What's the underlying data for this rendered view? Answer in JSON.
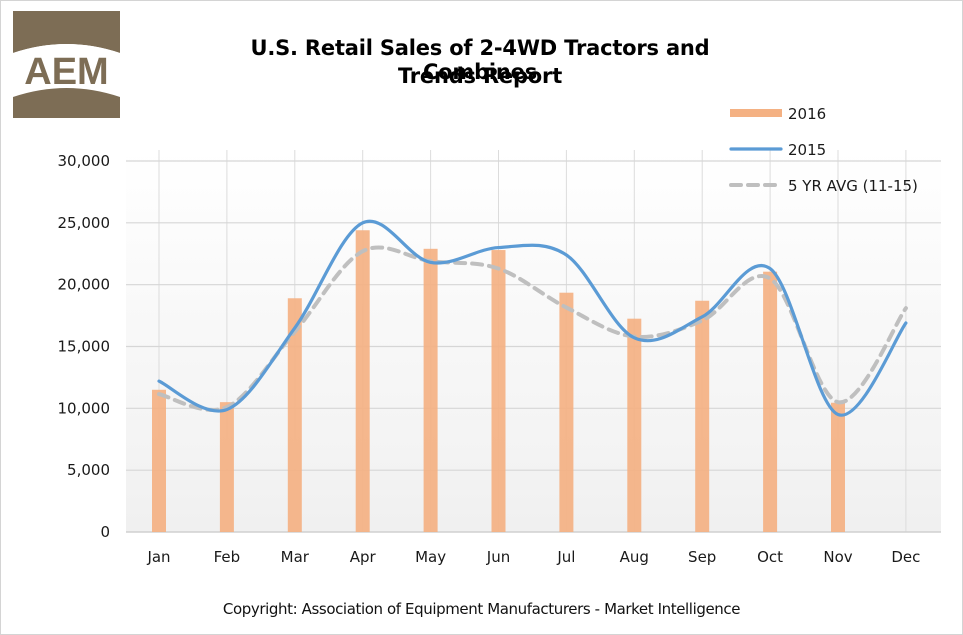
{
  "header": {
    "logo_text": "AEM",
    "logo_color": "#7d6d55",
    "title_line1": "U.S. Retail Sales of 2-4WD Tractors and Combines",
    "title_line2": "Trends Report"
  },
  "footer": {
    "copyright": "Copyright: Association of Equipment Manufacturers - Market Intelligence"
  },
  "legend": [
    {
      "label": "2016",
      "style": "bar",
      "color": "#f4b183"
    },
    {
      "label": "2015",
      "style": "line",
      "color": "#5b9bd5"
    },
    {
      "label": "5 YR AVG (11-15)",
      "style": "dashed",
      "color": "#bfbfbf"
    }
  ],
  "y_tick_labels": [
    "0",
    "5,000",
    "10,000",
    "15,000",
    "20,000",
    "25,000",
    "30,000"
  ],
  "chart_data": {
    "type": "bar",
    "title": "U.S. Retail Sales of 2-4WD Tractors and Combines Trends Report",
    "xlabel": "",
    "ylabel": "",
    "ylim": [
      0,
      30000
    ],
    "yticks": [
      0,
      5000,
      10000,
      15000,
      20000,
      25000,
      30000
    ],
    "grid": true,
    "legend_position": "top-right",
    "categories": [
      "Jan",
      "Feb",
      "Mar",
      "Apr",
      "May",
      "Jun",
      "Jul",
      "Aug",
      "Sep",
      "Oct",
      "Nov",
      "Dec"
    ],
    "series": [
      {
        "name": "2016",
        "type": "bar",
        "color": "#f4b183",
        "values": [
          11500,
          10500,
          18900,
          24400,
          22900,
          22800,
          19350,
          17250,
          18700,
          21050,
          10450,
          null
        ]
      },
      {
        "name": "2015",
        "type": "line",
        "color": "#5b9bd5",
        "smooth": true,
        "values": [
          12200,
          9900,
          16500,
          25000,
          21800,
          23000,
          22400,
          15700,
          17400,
          21300,
          9500,
          16900
        ]
      },
      {
        "name": "5 YR AVG (11-15)",
        "type": "line",
        "dashed": true,
        "color": "#bfbfbf",
        "smooth": true,
        "values": [
          11150,
          10100,
          16200,
          22700,
          21900,
          21300,
          18150,
          15800,
          17100,
          20500,
          10500,
          18100
        ]
      }
    ]
  }
}
